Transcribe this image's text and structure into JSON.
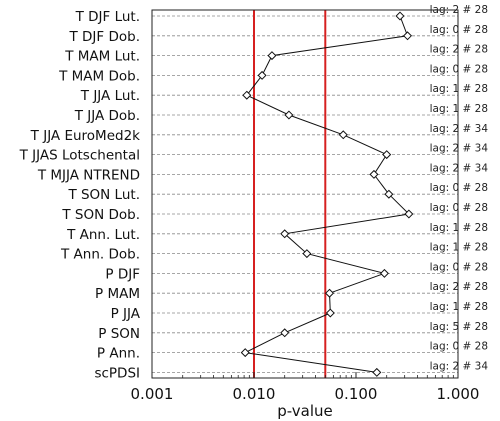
{
  "chart_data": {
    "type": "scatter",
    "title": "",
    "xlabel": "p-value",
    "x_scale": "log",
    "xlim": [
      0.001,
      1.0
    ],
    "x_ticks": [
      "0.001",
      "0.010",
      "0.100",
      "1.000"
    ],
    "reference_lines": [
      0.01,
      0.05
    ],
    "reference_line_color": "#d62020",
    "line_color": "#111111",
    "marker": "diamond",
    "grid_style": "dashed horizontal",
    "categories": [
      "T DJF Lut.",
      "T DJF Dob.",
      "T MAM Lut.",
      "T MAM Dob.",
      "T JJA Lut.",
      "T JJA Dob.",
      "T JJA EuroMed2k",
      "T JJAS Lotschental",
      "T MJJA NTREND",
      "T SON Lut.",
      "T SON Dob.",
      "T Ann. Lut.",
      "T Ann. Dob.",
      "P DJF",
      "P MAM",
      "P JJA",
      "P SON",
      "P Ann.",
      "scPDSI"
    ],
    "values": [
      0.27,
      0.32,
      0.015,
      0.012,
      0.0085,
      0.022,
      0.075,
      0.2,
      0.15,
      0.21,
      0.33,
      0.02,
      0.033,
      0.19,
      0.055,
      0.056,
      0.02,
      0.0082,
      0.16
    ],
    "annotations": [
      "lag: 2 # 28",
      "lag: 0 # 28",
      "lag: 2 # 28",
      "lag: 0 # 28",
      "lag: 1 # 28",
      "lag: 1 # 28",
      "lag: 2 # 34",
      "lag: 2 # 34",
      "lag: 2 # 34",
      "lag: 0 # 28",
      "lag: 0 # 28",
      "lag: 1 # 28",
      "lag: 1 # 28",
      "lag: 0 # 28",
      "lag: 2 # 28",
      "lag: 1 # 28",
      "lag: 5 # 28",
      "lag: 0 # 28",
      "lag: 2 # 34"
    ]
  }
}
